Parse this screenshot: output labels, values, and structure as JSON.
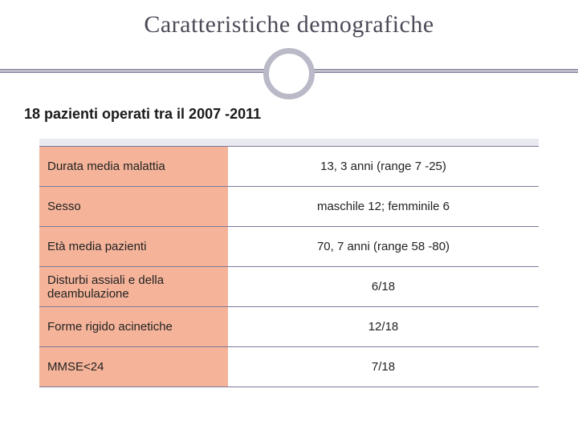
{
  "colors": {
    "title_text": "#4b4b58",
    "line": "#8e8ea6",
    "circle_border": "#b9b9c8",
    "subtitle_text": "#1a1a1a",
    "table_border": "#7a7a99",
    "label_bg": "#f5b49a",
    "label_text": "#222222",
    "value_text": "#222222",
    "top_shade": "#e9e9f0"
  },
  "title": "Caratteristiche demografiche",
  "subtitle": "18 pazienti operati tra il 2007 -2011",
  "table": {
    "rows": [
      {
        "label": "Durata media malattia",
        "value": "13, 3 anni (range 7 -25)"
      },
      {
        "label": "Sesso",
        "value": "maschile 12; femminile 6"
      },
      {
        "label": "Età media pazienti",
        "value": "70, 7 anni (range 58 -80)"
      },
      {
        "label": "Disturbi assiali e della deambulazione",
        "value": "6/18"
      },
      {
        "label": "Forme rigido acinetiche",
        "value": "12/18"
      },
      {
        "label": "MMSE<24",
        "value": "7/18"
      }
    ]
  }
}
